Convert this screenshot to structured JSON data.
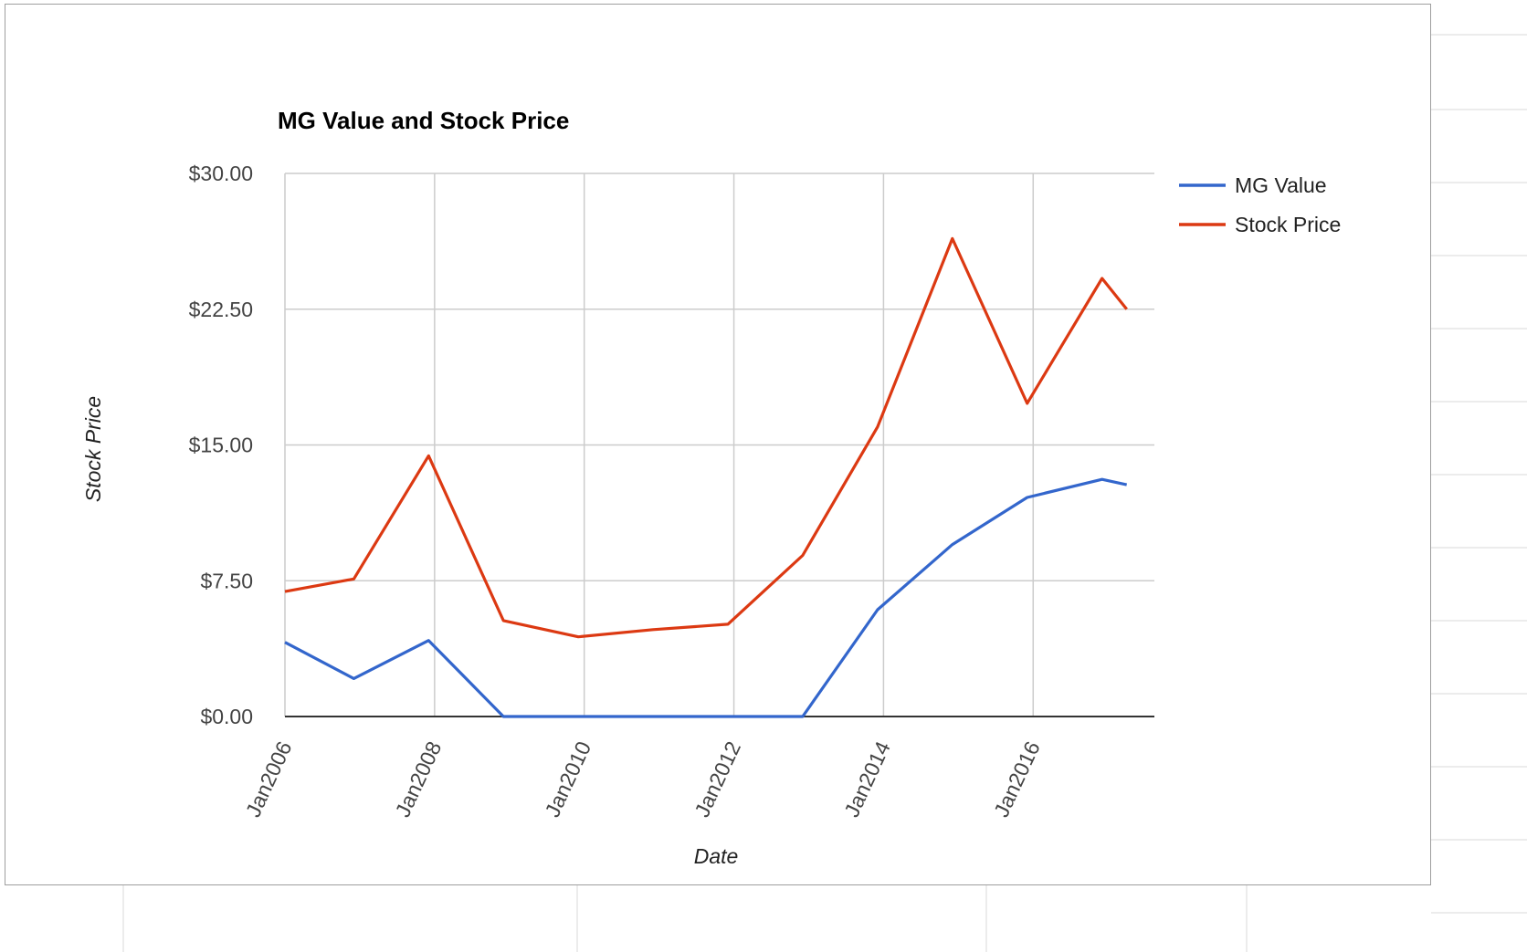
{
  "chart_data": {
    "type": "line",
    "title": "MG Value and Stock Price",
    "xlabel": "Date",
    "ylabel": "Stock Price",
    "ylim": [
      0,
      30
    ],
    "y_ticks": [
      "$0.00",
      "$7.50",
      "$15.00",
      "$22.50",
      "$30.00"
    ],
    "y_tick_values": [
      0,
      7.5,
      15,
      22.5,
      30
    ],
    "xlim": [
      2006.0,
      2017.62
    ],
    "x_ticks": [
      "Jan2006",
      "Jan2008",
      "Jan2010",
      "Jan2012",
      "Jan2014",
      "Jan2016"
    ],
    "x_tick_values": [
      2006,
      2008,
      2010,
      2012,
      2014,
      2016
    ],
    "grid": true,
    "legend_position": "right",
    "series": [
      {
        "name": "MG Value",
        "color": "#3366cc",
        "points": [
          [
            2006.0,
            4.1
          ],
          [
            2006.92,
            2.1
          ],
          [
            2007.92,
            4.2
          ],
          [
            2008.92,
            0.0
          ],
          [
            2012.92,
            0.0
          ],
          [
            2013.92,
            5.9
          ],
          [
            2014.92,
            9.5
          ],
          [
            2015.92,
            12.1
          ],
          [
            2016.92,
            13.1
          ],
          [
            2017.25,
            12.8
          ]
        ]
      },
      {
        "name": "Stock Price",
        "color": "#dc3912",
        "points": [
          [
            2006.0,
            6.9
          ],
          [
            2006.92,
            7.6
          ],
          [
            2007.92,
            14.4
          ],
          [
            2008.92,
            5.3
          ],
          [
            2009.92,
            4.4
          ],
          [
            2010.92,
            4.8
          ],
          [
            2011.92,
            5.1
          ],
          [
            2012.92,
            8.9
          ],
          [
            2013.92,
            16.0
          ],
          [
            2014.92,
            26.4
          ],
          [
            2015.92,
            17.3
          ],
          [
            2016.92,
            24.2
          ],
          [
            2017.25,
            22.5
          ]
        ]
      }
    ]
  }
}
